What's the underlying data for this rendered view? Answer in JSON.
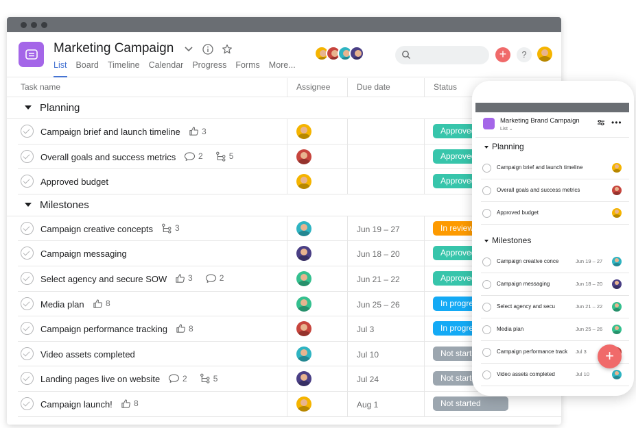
{
  "project": {
    "title": "Marketing Campaign",
    "tabs": [
      "List",
      "Board",
      "Timeline",
      "Calendar",
      "Progress",
      "Forms",
      "More..."
    ],
    "active_tab": "List"
  },
  "header": {
    "plus_label": "+",
    "help_label": "?"
  },
  "table": {
    "columns": [
      "Task name",
      "Assignee",
      "Due date",
      "Status"
    ],
    "sections": [
      {
        "title": "Planning",
        "rows": [
          {
            "name": "Campaign brief and launch timeline",
            "likes": "3",
            "comments": "",
            "subtasks": "",
            "avatar": "yellow",
            "due": "",
            "status": "Approved",
            "status_color": "#37c5ab"
          },
          {
            "name": "Overall goals and success metrics",
            "likes": "",
            "comments": "2",
            "subtasks": "5",
            "avatar": "red",
            "due": "",
            "status": "Approved",
            "status_color": "#37c5ab"
          },
          {
            "name": "Approved budget",
            "likes": "",
            "comments": "",
            "subtasks": "",
            "avatar": "yellow",
            "due": "",
            "status": "Approved",
            "status_color": "#37c5ab"
          }
        ]
      },
      {
        "title": "Milestones",
        "rows": [
          {
            "name": "Campaign creative concepts",
            "likes": "",
            "comments": "",
            "subtasks": "3",
            "avatar": "teal",
            "due": "Jun 19 – 27",
            "status": "In review",
            "status_color": "#fd9a00"
          },
          {
            "name": "Campaign messaging",
            "likes": "",
            "comments": "",
            "subtasks": "",
            "avatar": "purple",
            "due": "Jun 18 – 20",
            "status": "Approved",
            "status_color": "#37c5ab"
          },
          {
            "name": "Select agency and secure SOW",
            "likes": "3",
            "comments": "2",
            "subtasks": "",
            "avatar": "green",
            "due": "Jun 21 – 22",
            "status": "Approved",
            "status_color": "#37c5ab"
          },
          {
            "name": "Media plan",
            "likes": "8",
            "comments": "",
            "subtasks": "",
            "avatar": "green",
            "due": "Jun 25 – 26",
            "status": "In progress",
            "status_color": "#14aaf5"
          },
          {
            "name": "Campaign performance tracking",
            "likes": "8",
            "comments": "",
            "subtasks": "",
            "avatar": "red",
            "due": "Jul 3",
            "status": "In progress",
            "status_color": "#14aaf5"
          },
          {
            "name": "Video assets completed",
            "likes": "",
            "comments": "",
            "subtasks": "",
            "avatar": "teal",
            "due": "Jul 10",
            "status": "Not started",
            "status_color": "#9ca6af"
          },
          {
            "name": "Landing pages live on website",
            "likes": "",
            "comments": "2",
            "subtasks": "5",
            "avatar": "purple",
            "due": "Jul 24",
            "status": "Not started",
            "status_color": "#9ca6af"
          },
          {
            "name": "Campaign launch!",
            "likes": "8",
            "comments": "",
            "subtasks": "",
            "avatar": "yellow",
            "due": "Aug 1",
            "status": "Not started",
            "status_color": "#9ca6af"
          }
        ]
      }
    ]
  },
  "mobile": {
    "title": "Marketing Brand Campaign",
    "subtitle": "List",
    "sections": [
      {
        "title": "Planning",
        "rows": [
          {
            "name": "Campaign brief and launch timeline",
            "due": "",
            "avatar": "yellow"
          },
          {
            "name": "Overall goals and success metrics",
            "due": "",
            "avatar": "red"
          },
          {
            "name": "Approved budget",
            "due": "",
            "avatar": "yellow"
          }
        ]
      },
      {
        "title": "Milestones",
        "rows": [
          {
            "name": "Campaign creative conce",
            "due": "Jun 19 – 27",
            "avatar": "teal"
          },
          {
            "name": "Campaign messaging",
            "due": "Jun 18 – 20",
            "avatar": "purple"
          },
          {
            "name": "Select agency and secu",
            "due": "Jun 21 – 22",
            "avatar": "green"
          },
          {
            "name": "Media plan",
            "due": "Jun 25 – 26",
            "avatar": "green"
          },
          {
            "name": "Campaign performance track",
            "due": "Jul 3",
            "avatar": "red"
          },
          {
            "name": "Video assets completed",
            "due": "Jul 10",
            "avatar": "teal"
          }
        ]
      }
    ],
    "fab_label": "+"
  },
  "icons": {
    "project": "list-icon",
    "dropdown": "chevron-down-icon",
    "info": "info-icon",
    "favorite": "star-icon",
    "search": "search-icon",
    "like": "thumbs-up-icon",
    "comment": "comment-icon",
    "subtask": "subtask-icon",
    "check": "checkmark-icon",
    "filter": "filter-icon",
    "more": "more-icon"
  },
  "colors": {
    "accent": "#4573d2",
    "project_icon": "#a466e8",
    "add_button": "#f06a6a",
    "approved": "#37c5ab",
    "in_review": "#fd9a00",
    "in_progress": "#14aaf5",
    "not_started": "#9ca6af"
  }
}
